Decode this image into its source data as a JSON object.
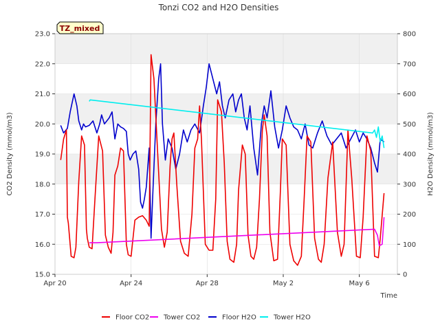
{
  "chart_data": {
    "type": "line",
    "title": "Tonzi CO2 and H2O Densities",
    "badge": "TZ_mixed",
    "xlabel": "Time",
    "ylabel_left": "CO2 Density (mmol/m3)",
    "ylabel_right": "H2O Density (mmol/m3)",
    "x_ticks": [
      "Apr 20",
      "Apr 24",
      "Apr 28",
      "May 2",
      "May 6"
    ],
    "x_tick_days": [
      0,
      4,
      8,
      12,
      16
    ],
    "xlim_days": [
      0,
      18
    ],
    "ylim_left": [
      15.0,
      23.0
    ],
    "ylim_right": [
      0,
      800
    ],
    "y_ticks_left": [
      "15.0",
      "16.0",
      "17.0",
      "18.0",
      "19.0",
      "20.0",
      "21.0",
      "22.0",
      "23.0"
    ],
    "y_ticks_right": [
      "0",
      "100",
      "200",
      "300",
      "400",
      "500",
      "600",
      "700",
      "800"
    ],
    "grid": true,
    "legend_position": "bottom",
    "colors": {
      "floor_co2": "#ee0000",
      "tower_co2": "#ee00ee",
      "floor_h2o": "#0000cc",
      "tower_h2o": "#00eeee",
      "band": "#f0f0f0",
      "grid": "#dddddd",
      "badge_fill": "#ffffcc"
    },
    "series": [
      {
        "name": "Floor CO2",
        "axis": "left",
        "x": [
          0.3,
          0.45,
          0.6,
          0.65,
          0.7,
          0.85,
          1.0,
          1.1,
          1.25,
          1.4,
          1.55,
          1.65,
          1.7,
          1.8,
          1.95,
          2.1,
          2.3,
          2.5,
          2.65,
          2.8,
          2.95,
          3.05,
          3.15,
          3.3,
          3.45,
          3.6,
          3.75,
          3.85,
          4.0,
          4.2,
          4.4,
          4.6,
          4.8,
          4.95,
          5.05,
          5.2,
          5.4,
          5.6,
          5.75,
          5.9,
          6.05,
          6.15,
          6.25,
          6.4,
          6.6,
          6.8,
          7.0,
          7.2,
          7.35,
          7.5,
          7.6,
          7.7,
          7.9,
          8.1,
          8.3,
          8.45,
          8.55,
          8.75,
          8.9,
          9.05,
          9.2,
          9.4,
          9.55,
          9.65,
          9.85,
          10.0,
          10.15,
          10.3,
          10.45,
          10.6,
          10.75,
          10.9,
          11.0,
          11.15,
          11.3,
          11.5,
          11.7,
          11.85,
          11.95,
          12.15,
          12.35,
          12.55,
          12.75,
          12.95,
          13.1,
          13.25,
          13.45,
          13.65,
          13.85,
          14.0,
          14.15,
          14.35,
          14.6,
          14.85,
          15.05,
          15.2,
          15.4,
          15.6,
          15.85,
          16.05,
          16.2,
          16.4,
          16.6,
          16.8,
          17.0,
          17.1,
          17.3
        ],
        "y": [
          18.8,
          19.5,
          19.8,
          16.9,
          16.7,
          15.6,
          15.55,
          15.9,
          18.1,
          19.6,
          19.3,
          16.5,
          16.2,
          15.9,
          15.85,
          17.5,
          19.6,
          19.1,
          16.3,
          15.9,
          15.7,
          16.4,
          18.3,
          18.6,
          19.2,
          19.1,
          16.0,
          15.65,
          15.6,
          16.8,
          16.9,
          16.95,
          16.8,
          16.6,
          22.3,
          21.5,
          19.0,
          16.5,
          15.9,
          16.4,
          18.6,
          19.5,
          19.7,
          18.0,
          16.1,
          15.7,
          15.6,
          17.0,
          19.2,
          19.5,
          20.6,
          19.5,
          16.0,
          15.8,
          15.8,
          17.5,
          20.8,
          20.4,
          18.7,
          16.1,
          15.5,
          15.4,
          16.0,
          17.8,
          19.3,
          19.0,
          16.3,
          15.6,
          15.5,
          15.9,
          17.5,
          19.8,
          20.3,
          19.6,
          16.4,
          15.45,
          15.5,
          17.8,
          19.5,
          19.3,
          16.0,
          15.45,
          15.3,
          15.6,
          17.5,
          19.6,
          19.4,
          16.2,
          15.5,
          15.4,
          16.0,
          18.2,
          19.4,
          16.4,
          15.6,
          16.0,
          19.8,
          18.2,
          15.6,
          15.55,
          16.9,
          19.6,
          19.1,
          15.6,
          15.55,
          16.2,
          17.7
        ]
      },
      {
        "name": "Tower CO2",
        "axis": "left",
        "x": [
          1.8,
          2.2,
          16.8,
          16.95,
          17.05,
          17.2,
          17.3
        ],
        "y": [
          16.05,
          16.05,
          16.5,
          16.3,
          15.95,
          16.0,
          16.9
        ]
      },
      {
        "name": "Floor H2O",
        "axis": "right",
        "x": [
          0.3,
          0.45,
          0.65,
          0.8,
          1.0,
          1.15,
          1.25,
          1.4,
          1.5,
          1.6,
          1.8,
          2.0,
          2.2,
          2.35,
          2.45,
          2.6,
          2.85,
          3.0,
          3.15,
          3.3,
          3.45,
          3.6,
          3.75,
          3.85,
          3.95,
          4.1,
          4.25,
          4.4,
          4.5,
          4.6,
          4.7,
          4.8,
          4.95,
          5.05,
          5.15,
          5.3,
          5.45,
          5.55,
          5.65,
          5.8,
          5.95,
          6.15,
          6.35,
          6.55,
          6.75,
          6.95,
          7.15,
          7.35,
          7.6,
          7.8,
          7.95,
          8.1,
          8.3,
          8.5,
          8.65,
          8.8,
          8.95,
          9.15,
          9.35,
          9.5,
          9.65,
          9.8,
          9.95,
          10.1,
          10.25,
          10.45,
          10.65,
          10.85,
          11.0,
          11.15,
          11.35,
          11.55,
          11.75,
          11.95,
          12.15,
          12.35,
          12.55,
          12.75,
          12.95,
          13.15,
          13.35,
          13.55,
          13.8,
          14.05,
          14.3,
          14.55,
          14.8,
          15.05,
          15.3,
          15.55,
          15.8,
          16.0,
          16.2,
          16.4,
          16.6,
          16.8,
          16.95,
          17.1,
          17.3
        ],
        "y": [
          495,
          470,
          485,
          540,
          600,
          560,
          510,
          480,
          500,
          490,
          495,
          510,
          470,
          500,
          530,
          500,
          520,
          540,
          450,
          500,
          490,
          485,
          475,
          400,
          380,
          400,
          410,
          350,
          240,
          220,
          250,
          290,
          420,
          120,
          280,
          500,
          650,
          700,
          500,
          380,
          450,
          420,
          350,
          400,
          480,
          440,
          480,
          500,
          470,
          560,
          620,
          700,
          650,
          600,
          640,
          560,
          520,
          580,
          600,
          540,
          580,
          600,
          520,
          480,
          560,
          420,
          330,
          500,
          560,
          520,
          610,
          490,
          420,
          480,
          560,
          520,
          490,
          480,
          450,
          500,
          430,
          420,
          470,
          510,
          460,
          430,
          450,
          470,
          420,
          450,
          480,
          440,
          470,
          450,
          420,
          370,
          340,
          450,
          440
        ]
      },
      {
        "name": "Tower H2O",
        "axis": "right",
        "x": [
          1.8,
          1.85,
          16.7,
          16.8,
          16.9,
          17.0,
          17.1,
          17.2,
          17.3
        ],
        "y": [
          575,
          580,
          470,
          480,
          455,
          490,
          440,
          460,
          420
        ]
      }
    ]
  }
}
